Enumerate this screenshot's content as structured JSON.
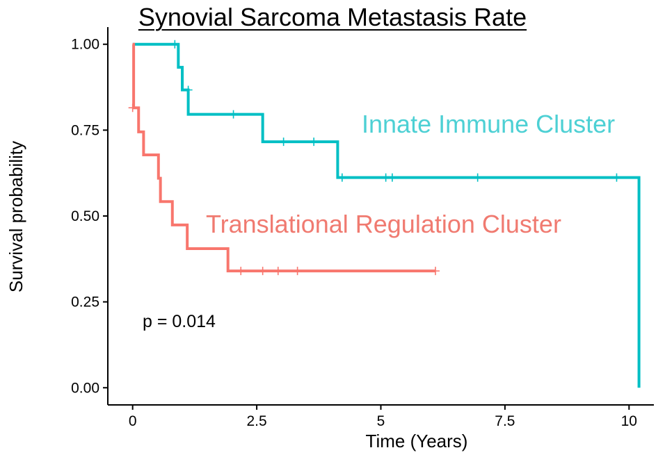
{
  "chart_data": {
    "type": "line",
    "subtype": "kaplan-meier-step",
    "title": "Synovial Sarcoma Metastasis Rate",
    "xlabel": "Time  (Years)",
    "ylabel": "Survival probability",
    "xlim": [
      -0.5,
      10.5
    ],
    "ylim": [
      -0.05,
      1.05
    ],
    "x_ticks": [
      0,
      2.5,
      5,
      7.5,
      10
    ],
    "x_tick_labels": [
      "0",
      "2.5",
      "5",
      "7.5",
      "10"
    ],
    "y_ticks": [
      0,
      0.25,
      0.5,
      0.75,
      1
    ],
    "y_tick_labels": [
      "0.00",
      "0.25",
      "0.50",
      "0.75",
      "1.00"
    ],
    "grid": false,
    "legend": "none",
    "annotation": "p = 0.014",
    "series": [
      {
        "name": "Innate Immune Cluster",
        "color": "#00bfc4",
        "label_color": "#4dd0d4",
        "steps": [
          {
            "x": 0.0,
            "y": 1.0
          },
          {
            "x": 0.92,
            "y": 0.933
          },
          {
            "x": 1.0,
            "y": 0.867
          },
          {
            "x": 1.12,
            "y": 0.796
          },
          {
            "x": 2.62,
            "y": 0.716
          },
          {
            "x": 4.13,
            "y": 0.612
          },
          {
            "x": 10.2,
            "y": 0.0
          }
        ],
        "end_x": 10.2,
        "censored": [
          {
            "x": 0.85,
            "y": 1.0
          },
          {
            "x": 1.12,
            "y": 0.867
          },
          {
            "x": 2.03,
            "y": 0.796
          },
          {
            "x": 3.04,
            "y": 0.716
          },
          {
            "x": 3.65,
            "y": 0.716
          },
          {
            "x": 4.22,
            "y": 0.612
          },
          {
            "x": 5.1,
            "y": 0.612
          },
          {
            "x": 5.23,
            "y": 0.612
          },
          {
            "x": 6.95,
            "y": 0.612
          },
          {
            "x": 9.75,
            "y": 0.612
          }
        ]
      },
      {
        "name": "Translational Regulation Cluster",
        "color": "#f8766d",
        "label_color": "#f07a70",
        "steps": [
          {
            "x": 0.0,
            "y": 1.0
          },
          {
            "x": 0.02,
            "y": 0.815
          },
          {
            "x": 0.12,
            "y": 0.745
          },
          {
            "x": 0.22,
            "y": 0.678
          },
          {
            "x": 0.52,
            "y": 0.61
          },
          {
            "x": 0.56,
            "y": 0.542
          },
          {
            "x": 0.8,
            "y": 0.474
          },
          {
            "x": 1.1,
            "y": 0.405
          },
          {
            "x": 1.92,
            "y": 0.34
          }
        ],
        "end_x": 6.1,
        "censored": [
          {
            "x": 0.0,
            "y": 0.815
          },
          {
            "x": 2.18,
            "y": 0.34
          },
          {
            "x": 2.62,
            "y": 0.34
          },
          {
            "x": 2.93,
            "y": 0.34
          },
          {
            "x": 3.32,
            "y": 0.34
          },
          {
            "x": 6.1,
            "y": 0.34
          }
        ]
      }
    ]
  }
}
